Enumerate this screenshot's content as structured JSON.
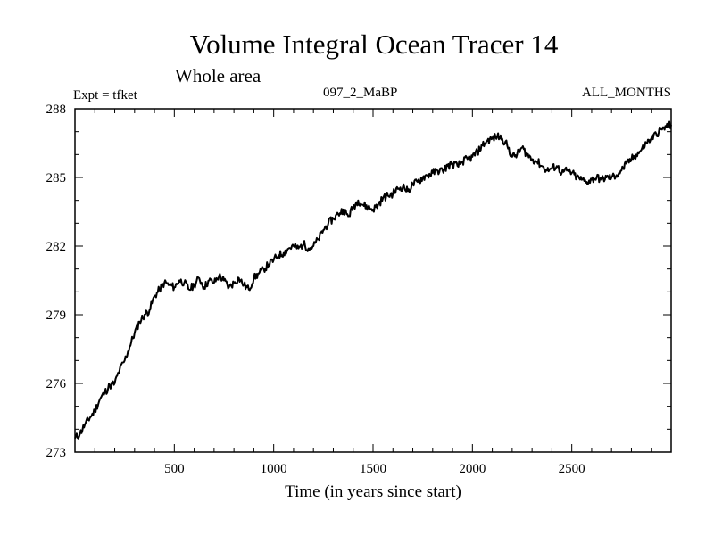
{
  "chart_data": {
    "type": "line",
    "title": "Volume Integral Ocean Tracer 14",
    "subtitle": "Whole area",
    "annotations": {
      "experiment": "Expt = tfket",
      "run": "097_2_MaBP",
      "months": "ALL_MONTHS"
    },
    "xlabel": "Time (in years since start)",
    "ylabel": "",
    "xlim": [
      0,
      3000
    ],
    "ylim": [
      273,
      288
    ],
    "xticks": [
      500,
      1000,
      1500,
      2000,
      2500
    ],
    "xtick_labels": [
      "500",
      "1000",
      "1500",
      "2000",
      "2500"
    ],
    "yticks": [
      273,
      276,
      279,
      282,
      285,
      288
    ],
    "ytick_labels": [
      "273",
      "276",
      "279",
      "282",
      "285",
      "288"
    ],
    "grid": false,
    "line_color": "#000000",
    "series": [
      {
        "x": [
          0,
          25,
          50,
          75,
          100,
          125,
          150,
          175,
          200,
          225,
          250,
          275,
          300,
          325,
          350,
          375,
          400,
          425,
          450,
          475,
          500,
          525,
          550,
          575,
          600,
          625,
          650,
          675,
          700,
          725,
          750,
          775,
          800,
          825,
          850,
          875,
          900,
          925,
          950,
          975,
          1000,
          1025,
          1050,
          1075,
          1100,
          1125,
          1150,
          1175,
          1200,
          1225,
          1250,
          1275,
          1300,
          1325,
          1350,
          1375,
          1400,
          1425,
          1450,
          1475,
          1500,
          1525,
          1550,
          1575,
          1600,
          1625,
          1650,
          1675,
          1700,
          1725,
          1750,
          1775,
          1800,
          1825,
          1850,
          1875,
          1900,
          1925,
          1950,
          1975,
          2000,
          2025,
          2050,
          2075,
          2100,
          2125,
          2150,
          2175,
          2200,
          2225,
          2250,
          2275,
          2300,
          2325,
          2350,
          2375,
          2400,
          2425,
          2450,
          2475,
          2500,
          2525,
          2550,
          2575,
          2600,
          2625,
          2650,
          2675,
          2700,
          2725,
          2750,
          2775,
          2800,
          2825,
          2850,
          2875,
          2900,
          2925,
          2950,
          2975,
          3000
        ],
        "values": [
          273.6,
          273.8,
          274.2,
          274.5,
          274.8,
          275.3,
          275.6,
          275.9,
          276.0,
          276.6,
          277.0,
          277.6,
          278.2,
          278.7,
          279.0,
          279.2,
          279.8,
          280.1,
          280.4,
          280.3,
          280.2,
          280.5,
          280.4,
          280.1,
          280.3,
          280.6,
          280.2,
          280.5,
          280.4,
          280.7,
          280.5,
          280.2,
          280.4,
          280.6,
          280.3,
          280.1,
          280.6,
          280.8,
          281.0,
          281.2,
          281.4,
          281.6,
          281.7,
          281.9,
          282.0,
          281.9,
          282.1,
          281.9,
          282.0,
          282.3,
          282.7,
          283.0,
          283.2,
          283.4,
          283.6,
          283.3,
          283.7,
          284.0,
          283.8,
          283.7,
          283.6,
          283.8,
          284.1,
          284.2,
          284.3,
          284.5,
          284.6,
          284.4,
          284.7,
          284.8,
          285.0,
          285.1,
          285.2,
          285.3,
          285.3,
          285.5,
          285.6,
          285.5,
          285.7,
          285.8,
          285.9,
          286.1,
          286.4,
          286.6,
          286.7,
          286.8,
          286.7,
          286.4,
          285.9,
          286.0,
          286.3,
          286.0,
          285.8,
          285.7,
          285.5,
          285.3,
          285.4,
          285.5,
          285.2,
          285.3,
          285.2,
          285.0,
          284.9,
          284.8,
          284.9,
          285.0,
          284.9,
          285.0,
          285.0,
          285.1,
          285.3,
          285.6,
          285.8,
          286.0,
          286.2,
          286.5,
          286.7,
          286.9,
          287.1,
          287.2,
          287.3
        ]
      }
    ]
  }
}
